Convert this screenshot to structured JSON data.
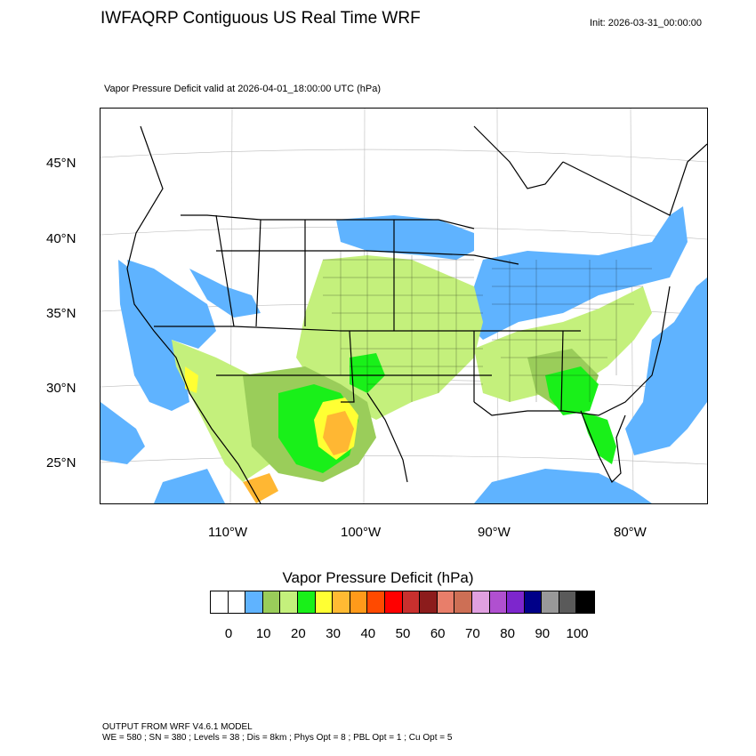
{
  "header": {
    "title": "IWFAQRP Contiguous US Real Time WRF",
    "init": "Init: 2026-03-31_00:00:00",
    "subtitle": "Vapor Pressure Deficit valid at 2026-04-01_18:00:00 UTC   (hPa)"
  },
  "map": {
    "lat_labels": [
      "45°N",
      "40°N",
      "35°N",
      "30°N",
      "25°N"
    ],
    "lon_labels": [
      "110°W",
      "100°W",
      "90°W",
      "80°W"
    ],
    "colors": {
      "ocean_blue": "#5fb3ff",
      "light_green": "#c4f07c",
      "olive_green": "#9acd5a",
      "bright_green": "#19f019",
      "yellow": "#ffff33",
      "orange": "#ffb733",
      "boundary": "#000000"
    }
  },
  "colorbar": {
    "title": "Vapor Pressure Deficit  (hPa)",
    "colors": [
      "#ffffff",
      "#ffffff",
      "#5fb3ff",
      "#9acd5a",
      "#c4f07c",
      "#19f019",
      "#ffff33",
      "#ffba33",
      "#ff9a1a",
      "#ff4a00",
      "#ff0000",
      "#c8302e",
      "#8c1c1c",
      "#e87e6a",
      "#cd6f55",
      "#e0a0e0",
      "#b050d0",
      "#7d26cd",
      "#000088",
      "#999999",
      "#5a5a5a",
      "#000000"
    ],
    "labels": [
      "0",
      "10",
      "20",
      "30",
      "40",
      "50",
      "60",
      "70",
      "80",
      "90",
      "100"
    ]
  },
  "footer": {
    "line1": "OUTPUT FROM WRF V4.6.1 MODEL",
    "line2": "WE = 580 ; SN = 380 ; Levels = 38 ; Dis = 8km ; Phys Opt = 8 ; PBL Opt = 1 ; Cu Opt = 5"
  }
}
